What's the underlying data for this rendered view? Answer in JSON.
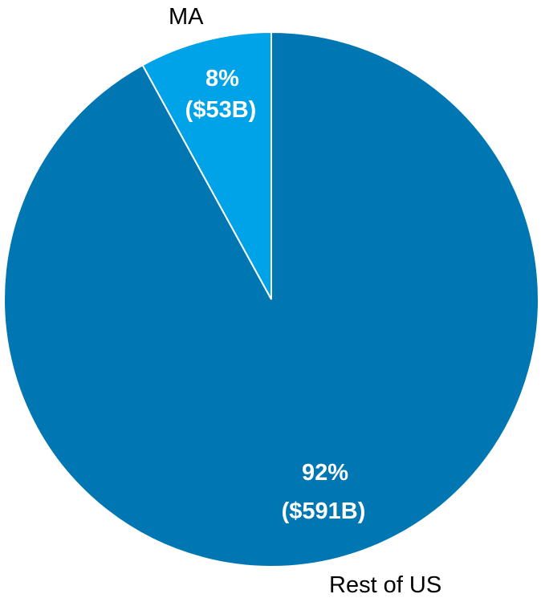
{
  "chart_data": {
    "type": "pie",
    "start_angle_deg": 0,
    "direction": "counterclockwise",
    "slices": [
      {
        "label": "MA",
        "percent": 8,
        "value_label_pct": "8%",
        "value_label_amt": "($53B)",
        "value": 53,
        "unit": "$B",
        "color": "#00A2E8"
      },
      {
        "label": "Rest of US",
        "percent": 92,
        "value_label_pct": "92%",
        "value_label_amt": "($591B)",
        "value": 591,
        "unit": "$B",
        "color": "#0077B3"
      }
    ],
    "legend": "none"
  }
}
